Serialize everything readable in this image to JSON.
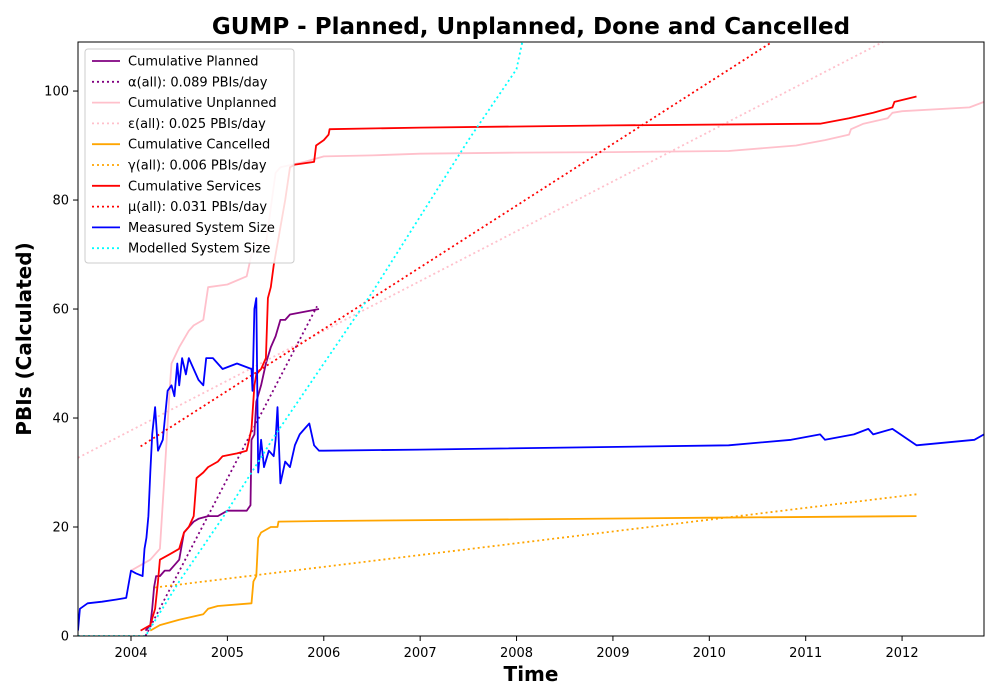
{
  "chart_data": {
    "type": "line",
    "title": "GUMP - Planned, Unplanned, Done  and Cancelled",
    "xlabel": "Time",
    "ylabel": "PBIs (Calculated)",
    "xlim": [
      2003.45,
      2012.85
    ],
    "ylim": [
      0,
      109
    ],
    "x_ticks": [
      "2004",
      "2005",
      "2006",
      "2007",
      "2008",
      "2009",
      "2010",
      "2011",
      "2012"
    ],
    "y_ticks": [
      "0",
      "20",
      "40",
      "60",
      "80",
      "100"
    ],
    "grid": false,
    "legend_position": "top-left",
    "series": [
      {
        "name": "Cumulative Planned",
        "color": "#800080",
        "style": "solid",
        "points": [
          [
            2004.15,
            1
          ],
          [
            2004.2,
            2
          ],
          [
            2004.22,
            5
          ],
          [
            2004.24,
            9
          ],
          [
            2004.26,
            11
          ],
          [
            2004.3,
            11
          ],
          [
            2004.35,
            12
          ],
          [
            2004.4,
            12
          ],
          [
            2004.45,
            13
          ],
          [
            2004.5,
            14
          ],
          [
            2004.55,
            19
          ],
          [
            2004.6,
            20
          ],
          [
            2004.65,
            21
          ],
          [
            2004.7,
            21.5
          ],
          [
            2004.8,
            22
          ],
          [
            2004.9,
            22
          ],
          [
            2005.0,
            23
          ],
          [
            2005.1,
            23
          ],
          [
            2005.2,
            23
          ],
          [
            2005.24,
            24
          ],
          [
            2005.25,
            36
          ],
          [
            2005.28,
            37
          ],
          [
            2005.3,
            43
          ],
          [
            2005.35,
            46
          ],
          [
            2005.4,
            50
          ],
          [
            2005.45,
            53
          ],
          [
            2005.5,
            55
          ],
          [
            2005.55,
            58
          ],
          [
            2005.6,
            58
          ],
          [
            2005.65,
            59
          ],
          [
            2005.8,
            59.5
          ],
          [
            2005.95,
            60
          ]
        ]
      },
      {
        "name": "α(all): 0.089 PBIs/day",
        "color": "#800080",
        "style": "dotted",
        "points": [
          [
            2004.15,
            0
          ],
          [
            2005.93,
            60.5
          ]
        ]
      },
      {
        "name": "Cumulative Unplanned",
        "color": "#ffc0cb",
        "style": "solid",
        "points": [
          [
            2004.0,
            12
          ],
          [
            2004.1,
            13
          ],
          [
            2004.2,
            14
          ],
          [
            2004.3,
            16
          ],
          [
            2004.35,
            30
          ],
          [
            2004.4,
            45
          ],
          [
            2004.42,
            50
          ],
          [
            2004.5,
            53
          ],
          [
            2004.6,
            56
          ],
          [
            2004.65,
            57
          ],
          [
            2004.75,
            58
          ],
          [
            2004.8,
            64
          ],
          [
            2005.0,
            64.5
          ],
          [
            2005.2,
            66
          ],
          [
            2005.25,
            70
          ],
          [
            2005.3,
            71
          ],
          [
            2005.4,
            72
          ],
          [
            2005.5,
            85
          ],
          [
            2005.55,
            86
          ],
          [
            2005.8,
            87
          ],
          [
            2006.0,
            88
          ],
          [
            2006.5,
            88.2
          ],
          [
            2007.0,
            88.5
          ],
          [
            2008.0,
            88.7
          ],
          [
            2009.0,
            88.8
          ],
          [
            2010.2,
            89
          ],
          [
            2010.9,
            90
          ],
          [
            2011.2,
            91
          ],
          [
            2011.45,
            92
          ],
          [
            2011.47,
            93
          ],
          [
            2011.6,
            94
          ],
          [
            2011.85,
            95
          ],
          [
            2011.9,
            96
          ],
          [
            2012.0,
            96.3
          ],
          [
            2012.7,
            97
          ],
          [
            2012.85,
            98
          ]
        ]
      },
      {
        "name": "ε(all): 0.025 PBIs/day",
        "color": "#ffc0cb",
        "style": "dotted",
        "points": [
          [
            2003.45,
            32.7
          ],
          [
            2011.8,
            109
          ]
        ]
      },
      {
        "name": "Cumulative Cancelled",
        "color": "#ffa500",
        "style": "solid",
        "points": [
          [
            2004.2,
            1
          ],
          [
            2004.3,
            2
          ],
          [
            2004.5,
            3
          ],
          [
            2004.75,
            4
          ],
          [
            2004.8,
            5
          ],
          [
            2004.9,
            5.5
          ],
          [
            2005.25,
            6
          ],
          [
            2005.27,
            10
          ],
          [
            2005.3,
            11
          ],
          [
            2005.32,
            18
          ],
          [
            2005.35,
            19
          ],
          [
            2005.45,
            20
          ],
          [
            2005.52,
            20
          ],
          [
            2005.53,
            21
          ],
          [
            2006.0,
            21.1
          ],
          [
            2008.0,
            21.4
          ],
          [
            2010.0,
            21.7
          ],
          [
            2012.15,
            22
          ]
        ]
      },
      {
        "name": "γ(all): 0.006 PBIs/day",
        "color": "#ffa500",
        "style": "dotted",
        "points": [
          [
            2004.25,
            8.9
          ],
          [
            2012.15,
            26
          ]
        ]
      },
      {
        "name": "Cumulative Services",
        "color": "#ff0000",
        "style": "solid",
        "points": [
          [
            2004.1,
            1
          ],
          [
            2004.2,
            2
          ],
          [
            2004.25,
            5
          ],
          [
            2004.28,
            10
          ],
          [
            2004.3,
            14
          ],
          [
            2004.4,
            15
          ],
          [
            2004.5,
            16
          ],
          [
            2004.55,
            19
          ],
          [
            2004.6,
            20
          ],
          [
            2004.65,
            22
          ],
          [
            2004.68,
            29
          ],
          [
            2004.75,
            30
          ],
          [
            2004.8,
            31
          ],
          [
            2004.9,
            32
          ],
          [
            2004.95,
            33
          ],
          [
            2005.1,
            33.5
          ],
          [
            2005.2,
            34
          ],
          [
            2005.25,
            38
          ],
          [
            2005.28,
            46
          ],
          [
            2005.3,
            48
          ],
          [
            2005.35,
            49
          ],
          [
            2005.4,
            51
          ],
          [
            2005.42,
            62
          ],
          [
            2005.45,
            64
          ],
          [
            2005.48,
            68
          ],
          [
            2005.5,
            70
          ],
          [
            2005.55,
            75
          ],
          [
            2005.6,
            80
          ],
          [
            2005.65,
            86
          ],
          [
            2005.7,
            86.5
          ],
          [
            2005.9,
            87
          ],
          [
            2005.92,
            90
          ],
          [
            2006.0,
            91
          ],
          [
            2006.05,
            92
          ],
          [
            2006.06,
            93
          ],
          [
            2007.0,
            93.3
          ],
          [
            2009.0,
            93.7
          ],
          [
            2011.15,
            94
          ],
          [
            2011.45,
            95
          ],
          [
            2011.7,
            96
          ],
          [
            2011.9,
            97
          ],
          [
            2011.92,
            98
          ],
          [
            2012.15,
            99
          ]
        ]
      },
      {
        "name": "μ(all): 0.031 PBIs/day",
        "color": "#ff0000",
        "style": "dotted",
        "points": [
          [
            2004.1,
            34.8
          ],
          [
            2010.65,
            109
          ]
        ]
      },
      {
        "name": "Measured System Size",
        "color": "#0000ff",
        "style": "solid",
        "points": [
          [
            2003.45,
            1
          ],
          [
            2003.47,
            5
          ],
          [
            2003.55,
            6
          ],
          [
            2003.7,
            6.3
          ],
          [
            2003.85,
            6.7
          ],
          [
            2003.95,
            7
          ],
          [
            2004.0,
            12
          ],
          [
            2004.05,
            11.5
          ],
          [
            2004.12,
            11
          ],
          [
            2004.14,
            16
          ],
          [
            2004.16,
            18
          ],
          [
            2004.18,
            22
          ],
          [
            2004.2,
            30
          ],
          [
            2004.22,
            37
          ],
          [
            2004.25,
            42
          ],
          [
            2004.28,
            34
          ],
          [
            2004.33,
            36
          ],
          [
            2004.38,
            45
          ],
          [
            2004.42,
            46
          ],
          [
            2004.45,
            44
          ],
          [
            2004.48,
            50
          ],
          [
            2004.5,
            46
          ],
          [
            2004.53,
            51
          ],
          [
            2004.57,
            48
          ],
          [
            2004.6,
            51
          ],
          [
            2004.7,
            47
          ],
          [
            2004.75,
            46
          ],
          [
            2004.78,
            51
          ],
          [
            2004.85,
            51
          ],
          [
            2004.95,
            49
          ],
          [
            2005.1,
            50
          ],
          [
            2005.25,
            49
          ],
          [
            2005.26,
            45
          ],
          [
            2005.28,
            60
          ],
          [
            2005.3,
            62
          ],
          [
            2005.32,
            30
          ],
          [
            2005.35,
            36
          ],
          [
            2005.38,
            31
          ],
          [
            2005.43,
            34
          ],
          [
            2005.48,
            33
          ],
          [
            2005.5,
            36
          ],
          [
            2005.52,
            42
          ],
          [
            2005.55,
            28
          ],
          [
            2005.6,
            32
          ],
          [
            2005.65,
            31
          ],
          [
            2005.7,
            35
          ],
          [
            2005.75,
            37
          ],
          [
            2005.8,
            38
          ],
          [
            2005.85,
            39
          ],
          [
            2005.9,
            35
          ],
          [
            2005.95,
            34
          ],
          [
            2006.0,
            34
          ],
          [
            2007.0,
            34.2
          ],
          [
            2010.2,
            35
          ],
          [
            2010.85,
            36
          ],
          [
            2011.15,
            37
          ],
          [
            2011.2,
            36
          ],
          [
            2011.5,
            37
          ],
          [
            2011.65,
            38
          ],
          [
            2011.7,
            37
          ],
          [
            2011.9,
            38
          ],
          [
            2012.15,
            35
          ],
          [
            2012.75,
            36
          ],
          [
            2012.85,
            37
          ]
        ]
      },
      {
        "name": "Modelled System Size",
        "color": "#00ffff",
        "style": "dotted",
        "points": [
          [
            2003.45,
            0
          ],
          [
            2004.15,
            0
          ],
          [
            2004.5,
            10
          ],
          [
            2005.0,
            23
          ],
          [
            2005.5,
            37
          ],
          [
            2006.0,
            50
          ],
          [
            2006.5,
            63
          ],
          [
            2007.0,
            77
          ],
          [
            2007.5,
            91
          ],
          [
            2008.0,
            104
          ],
          [
            2008.06,
            109
          ]
        ]
      }
    ]
  }
}
